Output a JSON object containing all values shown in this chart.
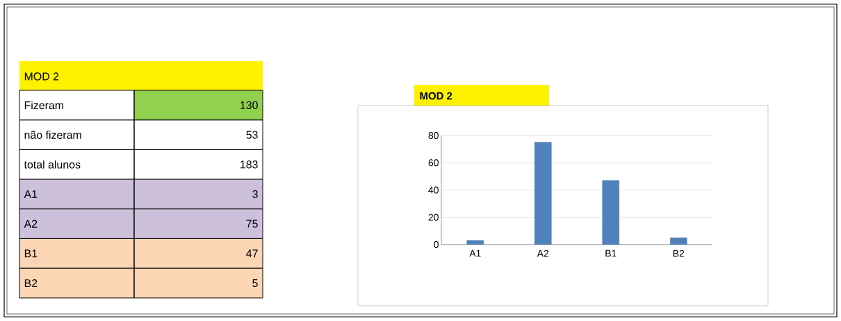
{
  "chart_data": {
    "type": "bar",
    "title": "MOD 2",
    "categories": [
      "A1",
      "A2",
      "B1",
      "B2"
    ],
    "values": [
      3,
      75,
      47,
      5
    ],
    "color": "#4f81bd",
    "ylim": [
      0,
      80
    ],
    "yticks": [
      0,
      20,
      40,
      60,
      80
    ],
    "grid": "y",
    "annotations": [
      "Fizeram",
      "130",
      "não fizeram",
      "53",
      "total alunos",
      "183",
      "3",
      "75",
      "47",
      "5"
    ]
  }
}
